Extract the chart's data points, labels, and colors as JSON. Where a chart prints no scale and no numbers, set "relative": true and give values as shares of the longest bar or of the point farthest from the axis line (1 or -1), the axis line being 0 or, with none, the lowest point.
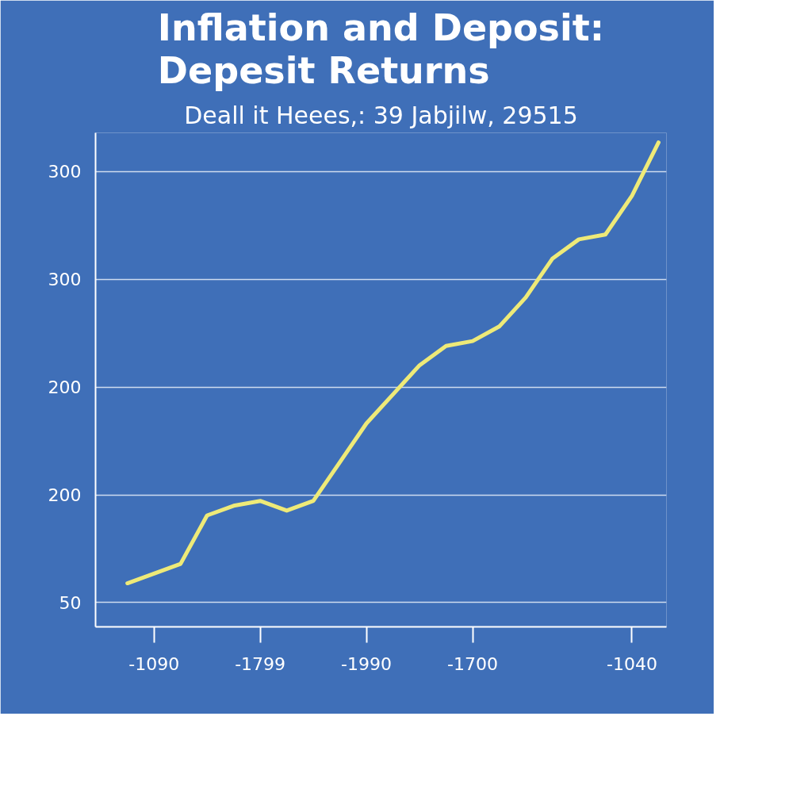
{
  "chart_data": {
    "type": "line",
    "title": "Inflation and Deposit:\nDepesit Returns",
    "subtitle": "Deall it Heees,: 39 Jabjilw, 29515",
    "categories": [
      null,
      "-1090",
      null,
      null,
      null,
      "-1799",
      null,
      null,
      null,
      "-1990",
      null,
      null,
      null,
      "-1700",
      null,
      null,
      null,
      null,
      null,
      "-1040",
      null
    ],
    "series": [
      {
        "color": "#eeea78",
        "values": [
          0.09,
          0.11,
          0.13,
          0.23,
          0.25,
          0.26,
          0.24,
          0.26,
          0.34,
          0.42,
          0.48,
          0.54,
          0.58,
          0.59,
          0.62,
          0.68,
          0.76,
          0.8,
          0.81,
          0.89,
          1.0
        ]
      }
    ],
    "relative": true,
    "annotations": [
      "300",
      "300",
      "200",
      "200",
      "50"
    ],
    "grid": "y",
    "marker": "none",
    "line_style": "solid"
  }
}
